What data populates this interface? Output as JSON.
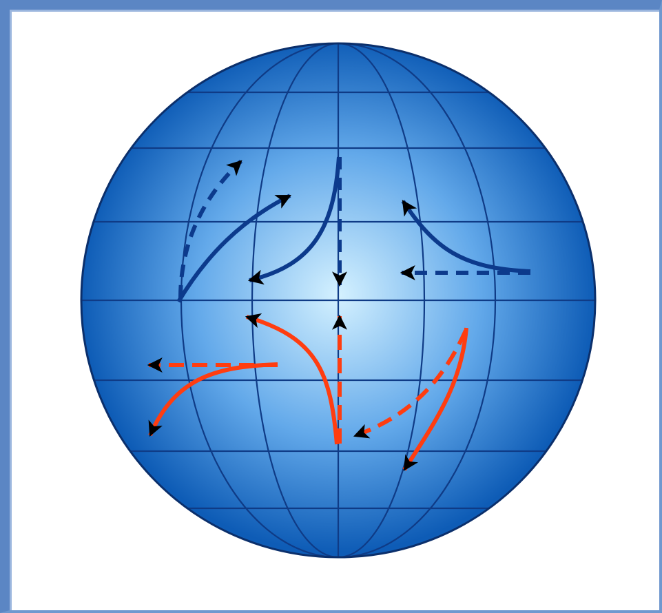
{
  "diagram": {
    "colors": {
      "frame": "#5b86c4",
      "globe_center": "#d4f1ff",
      "globe_mid": "#63a9ea",
      "globe_edge": "#0e5cb6",
      "globe_outline": "#0b2f6b",
      "grid_lines": "#0f3b86",
      "north_arrows": "#0c3a8c",
      "south_arrows": "#ff3d10",
      "arrowheads": "#000000"
    },
    "hemispheres": {
      "north": {
        "arrow_color": "blue",
        "curves": 4,
        "straight_dashed": 2
      },
      "south": {
        "arrow_color": "red-orange",
        "curves": 4,
        "straight_dashed": 2
      }
    }
  }
}
